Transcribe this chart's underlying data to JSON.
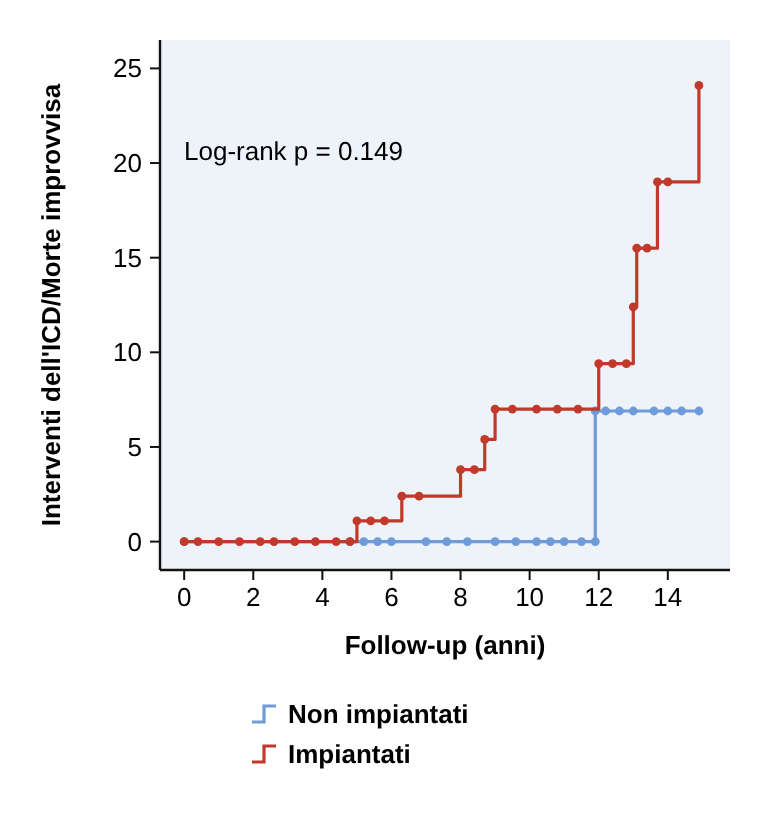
{
  "chart_data": {
    "type": "step",
    "xlabel": "Follow-up (anni)",
    "ylabel": "Interventi dell'ICD/Morte improvvisa",
    "xlim": [
      -0.7,
      15.8
    ],
    "ylim": [
      -1.5,
      26.5
    ],
    "xticks": [
      0,
      2,
      4,
      6,
      8,
      10,
      12,
      14
    ],
    "yticks": [
      0,
      5,
      10,
      15,
      20,
      25
    ],
    "marker": "circle",
    "legend": "bottom",
    "grid": false,
    "annotations": [
      "Log-rank p = 0.149"
    ],
    "series": [
      {
        "name": "Non impiantati",
        "color": "#6f9bd8",
        "x": [
          0,
          4.8,
          5.2,
          5.6,
          6.0,
          7.0,
          7.6,
          8.2,
          9.0,
          9.6,
          10.2,
          10.6,
          11.0,
          11.5,
          11.9,
          11.9,
          12.2,
          12.6,
          13.0,
          13.6,
          14.0,
          14.4,
          14.9
        ],
        "values": [
          0,
          0,
          0,
          0,
          0,
          0,
          0,
          0,
          0,
          0,
          0,
          0,
          0,
          0,
          0,
          6.9,
          6.9,
          6.9,
          6.9,
          6.9,
          6.9,
          6.9,
          6.9
        ]
      },
      {
        "name": "Impiantati",
        "color": "#c0392b",
        "x": [
          0,
          0.4,
          1.0,
          1.6,
          2.2,
          2.6,
          3.2,
          3.8,
          4.4,
          4.8,
          5.0,
          5.4,
          5.8,
          6.3,
          6.8,
          8.0,
          8.4,
          8.7,
          9.0,
          9.5,
          10.2,
          10.8,
          11.4,
          12.0,
          12.4,
          12.8,
          13.0,
          13.1,
          13.4,
          13.7,
          14.0,
          14.9
        ],
        "values": [
          0,
          0,
          0,
          0,
          0,
          0,
          0,
          0,
          0,
          0,
          1.1,
          1.1,
          1.1,
          2.4,
          2.4,
          3.8,
          3.8,
          5.4,
          7.0,
          7.0,
          7.0,
          7.0,
          7.0,
          9.4,
          9.4,
          9.4,
          12.4,
          15.5,
          15.5,
          19.0,
          19.0,
          24.1
        ]
      }
    ]
  }
}
